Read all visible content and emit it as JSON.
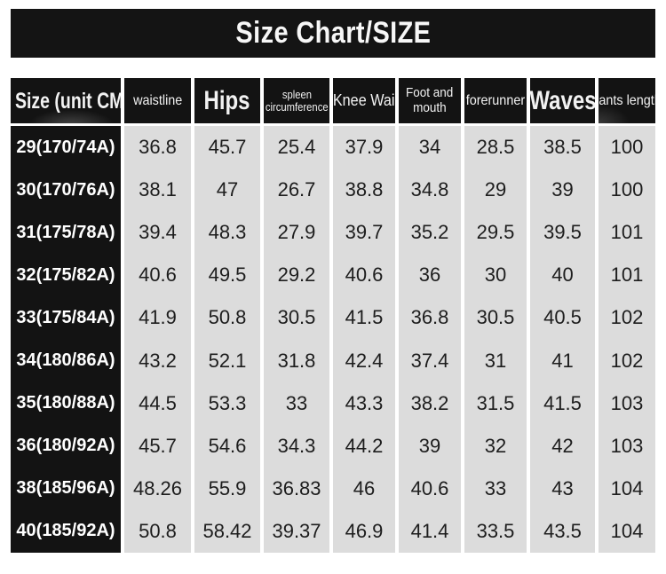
{
  "chart_data": {
    "type": "table",
    "title": "Size Chart/SIZE",
    "unit": "CM",
    "columns": [
      "Size (unit CM",
      "waistline",
      "Hips",
      "spleen circumference",
      "Knee Wai",
      "Foot and mouth",
      "forerunner",
      "Waves",
      "pants length"
    ],
    "header_lines": [
      [
        "Size (unit CM"
      ],
      [
        "waistline"
      ],
      [
        "Hips"
      ],
      [
        "spleen",
        "circumference"
      ],
      [
        "Knee Wai"
      ],
      [
        "Foot and",
        "mouth"
      ],
      [
        "forerunner"
      ],
      [
        "Waves"
      ],
      [
        "pants length"
      ]
    ],
    "rows": [
      [
        "29(170/74A)",
        "36.8",
        "45.7",
        "25.4",
        "37.9",
        "34",
        "28.5",
        "38.5",
        "100"
      ],
      [
        "30(170/76A)",
        "38.1",
        "47",
        "26.7",
        "38.8",
        "34.8",
        "29",
        "39",
        "100"
      ],
      [
        "31(175/78A)",
        "39.4",
        "48.3",
        "27.9",
        "39.7",
        "35.2",
        "29.5",
        "39.5",
        "101"
      ],
      [
        "32(175/82A)",
        "40.6",
        "49.5",
        "29.2",
        "40.6",
        "36",
        "30",
        "40",
        "101"
      ],
      [
        "33(175/84A)",
        "41.9",
        "50.8",
        "30.5",
        "41.5",
        "36.8",
        "30.5",
        "40.5",
        "102"
      ],
      [
        "34(180/86A)",
        "43.2",
        "52.1",
        "31.8",
        "42.4",
        "37.4",
        "31",
        "41",
        "102"
      ],
      [
        "35(180/88A)",
        "44.5",
        "53.3",
        "33",
        "43.3",
        "38.2",
        "31.5",
        "41.5",
        "103"
      ],
      [
        "36(180/92A)",
        "45.7",
        "54.6",
        "34.3",
        "44.2",
        "39",
        "32",
        "42",
        "103"
      ],
      [
        "38(185/96A)",
        "48.26",
        "55.9",
        "36.83",
        "46",
        "40.6",
        "33",
        "43",
        "104"
      ],
      [
        "40(185/92A)",
        "50.8",
        "58.42",
        "39.37",
        "46.9",
        "41.4",
        "33.5",
        "43.5",
        "104"
      ]
    ],
    "layout_hints": {
      "grid": false,
      "header_position": "top",
      "row_label_column": 0
    },
    "colors": {
      "banner_bg": "#141414",
      "header_bg": "#131313",
      "header_text": "#f2f2f2",
      "cell_bg": "#dcdcdc",
      "cell_text": "#1d1d1d",
      "row_label_text": "#ffffff",
      "page_bg": "#ffffff"
    }
  }
}
